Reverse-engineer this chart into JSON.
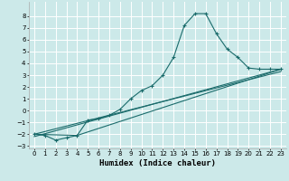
{
  "xlabel": "Humidex (Indice chaleur)",
  "background_color": "#cce9e9",
  "grid_color": "#ffffff",
  "line_color": "#1a6b6b",
  "xlim": [
    -0.5,
    23.5
  ],
  "ylim": [
    -3.2,
    9.2
  ],
  "xticks": [
    0,
    1,
    2,
    3,
    4,
    5,
    6,
    7,
    8,
    9,
    10,
    11,
    12,
    13,
    14,
    15,
    16,
    17,
    18,
    19,
    20,
    21,
    22,
    23
  ],
  "yticks": [
    -3,
    -2,
    -1,
    0,
    1,
    2,
    3,
    4,
    5,
    6,
    7,
    8
  ],
  "series1_x": [
    0,
    1,
    2,
    3,
    4,
    5,
    6,
    7,
    8,
    9,
    10,
    11,
    12,
    13,
    14,
    15,
    16,
    17,
    18,
    19,
    20,
    21,
    22,
    23
  ],
  "series1_y": [
    -2.0,
    -2.1,
    -2.5,
    -2.3,
    -2.1,
    -0.8,
    -0.7,
    -0.4,
    0.1,
    1.0,
    1.7,
    2.1,
    3.0,
    4.5,
    7.2,
    8.2,
    8.2,
    6.5,
    5.2,
    4.5,
    3.6,
    3.5,
    3.5,
    3.5
  ],
  "line2_x": [
    0,
    23
  ],
  "line2_y": [
    -2.2,
    3.5
  ],
  "line3_x": [
    0,
    4,
    23
  ],
  "line3_y": [
    -2.0,
    -2.1,
    3.5
  ],
  "line4_x": [
    0,
    23
  ],
  "line4_y": [
    -2.0,
    3.3
  ],
  "line_width": 0.8,
  "marker": "+",
  "marker_size": 3.0,
  "xlabel_fontsize": 6.5,
  "tick_fontsize": 5.0
}
